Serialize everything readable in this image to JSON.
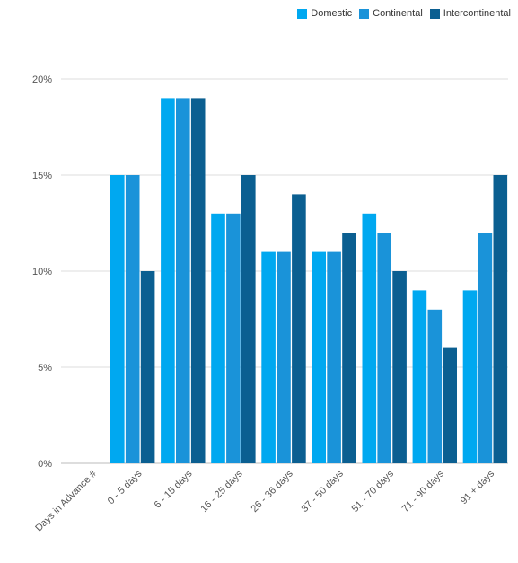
{
  "chart_data": {
    "type": "bar",
    "title": "",
    "xlabel": "",
    "ylabel": "",
    "x_header_label": "Days in Advance #",
    "categories": [
      "0 - 5 days",
      "6 - 15 days",
      "16 - 25 days",
      "26 - 36 days",
      "37 - 50 days",
      "51 - 70 days",
      "71 - 90 days",
      "91 + days"
    ],
    "series": [
      {
        "name": "Domestic",
        "color": "#00a8f0",
        "values": [
          15,
          19,
          13,
          11,
          11,
          13,
          9,
          9
        ]
      },
      {
        "name": "Continental",
        "color": "#1a93d9",
        "values": [
          15,
          19,
          13,
          11,
          11,
          12,
          8,
          12
        ]
      },
      {
        "name": "Intercontinental",
        "color": "#0b5f91",
        "values": [
          10,
          19,
          15,
          14,
          12,
          10,
          6,
          15
        ]
      }
    ],
    "ylim": [
      0,
      20
    ],
    "y_ticks": [
      "0%",
      "5%",
      "10%",
      "15%",
      "20%"
    ],
    "y_tick_values": [
      0,
      5,
      10,
      15,
      20
    ],
    "grid": true,
    "legend_position": "top-right"
  }
}
